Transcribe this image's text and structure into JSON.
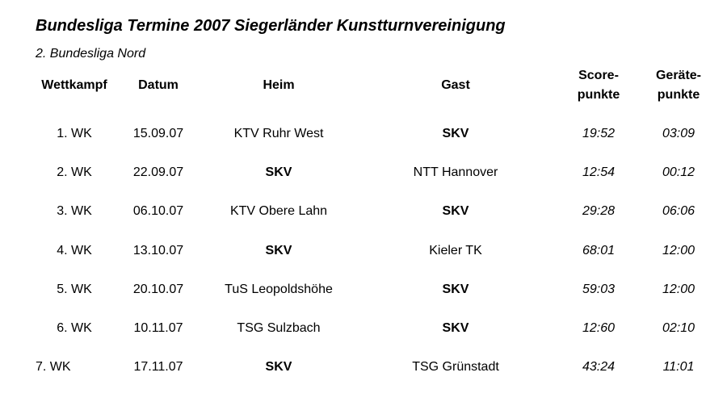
{
  "header": {
    "title": "Bundesliga Termine 2007 Siegerländer Kunstturnvereinigung",
    "subtitle": "2. Bundesliga Nord"
  },
  "table": {
    "columns": [
      [
        "Wettkampf"
      ],
      [
        "Datum"
      ],
      [
        "Heim"
      ],
      [
        "Gast"
      ],
      [
        "Score-",
        "punkte"
      ],
      [
        "Geräte-",
        "punkte"
      ]
    ],
    "rows": [
      [
        "1. WK",
        "15.09.07",
        "KTV Ruhr West",
        "SKV",
        "19:52",
        "03:09"
      ],
      [
        "2. WK",
        "22.09.07",
        "SKV",
        "NTT Hannover",
        "12:54",
        "00:12"
      ],
      [
        "3. WK",
        "06.10.07",
        "KTV Obere Lahn",
        "SKV",
        "29:28",
        "06:06"
      ],
      [
        "4. WK",
        "13.10.07",
        "SKV",
        "Kieler TK",
        "68:01",
        "12:00"
      ],
      [
        "5. WK",
        "20.10.07",
        "TuS Leopoldshöhe",
        "SKV",
        "59:03",
        "12:00"
      ],
      [
        "6. WK",
        "10.11.07",
        "TSG Sulzbach",
        "SKV",
        "12:60",
        "02:10"
      ],
      [
        "7. WK",
        "17.11.07",
        "SKV",
        "TSG Grünstadt",
        "43:24",
        "11:01"
      ]
    ]
  }
}
